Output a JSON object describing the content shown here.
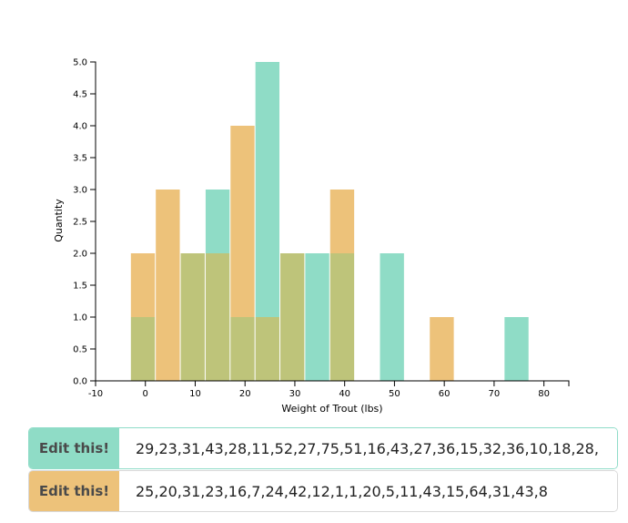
{
  "chart_data": {
    "type": "bar",
    "xlabel": "Weight of Trout (lbs)",
    "ylabel": "Quantity",
    "xlim": [
      -10,
      85
    ],
    "ylim": [
      0,
      5
    ],
    "x_ticks": [
      -10,
      0,
      10,
      20,
      30,
      40,
      50,
      60,
      70,
      80
    ],
    "y_ticks": [
      "0.0",
      "0.5",
      "1.0",
      "1.5",
      "2.0",
      "2.5",
      "3.0",
      "3.5",
      "4.0",
      "4.5",
      "5.0"
    ],
    "bins": [
      [
        -3,
        2
      ],
      [
        2,
        7
      ],
      [
        7,
        12
      ],
      [
        12,
        17
      ],
      [
        17,
        22
      ],
      [
        22,
        27
      ],
      [
        27,
        32
      ],
      [
        32,
        37
      ],
      [
        37,
        42
      ],
      [
        42,
        47
      ],
      [
        47,
        52
      ],
      [
        52,
        57
      ],
      [
        57,
        62
      ],
      [
        62,
        67
      ],
      [
        67,
        72
      ],
      [
        72,
        77
      ],
      [
        77,
        82
      ]
    ],
    "series": [
      {
        "color": "#8fdcc6",
        "values": [
          1,
          0,
          2,
          3,
          1,
          5,
          2,
          2,
          2,
          0,
          2,
          0,
          0,
          0,
          0,
          1,
          0
        ]
      },
      {
        "color": "#edc27a",
        "values": [
          2,
          3,
          2,
          2,
          4,
          1,
          2,
          0,
          3,
          0,
          0,
          0,
          1,
          0,
          0,
          0,
          0
        ]
      }
    ],
    "overlap_color": "#bec47a",
    "grid": false
  },
  "inputs": [
    {
      "label": "Edit this!",
      "value": "29,23,31,43,28,11,52,27,75,51,16,43,27,36,15,32,36,10,18,28,"
    },
    {
      "label": "Edit this!",
      "value": "25,20,31,23,16,7,24,42,12,1,1,20,5,11,43,15,64,31,43,8"
    }
  ]
}
